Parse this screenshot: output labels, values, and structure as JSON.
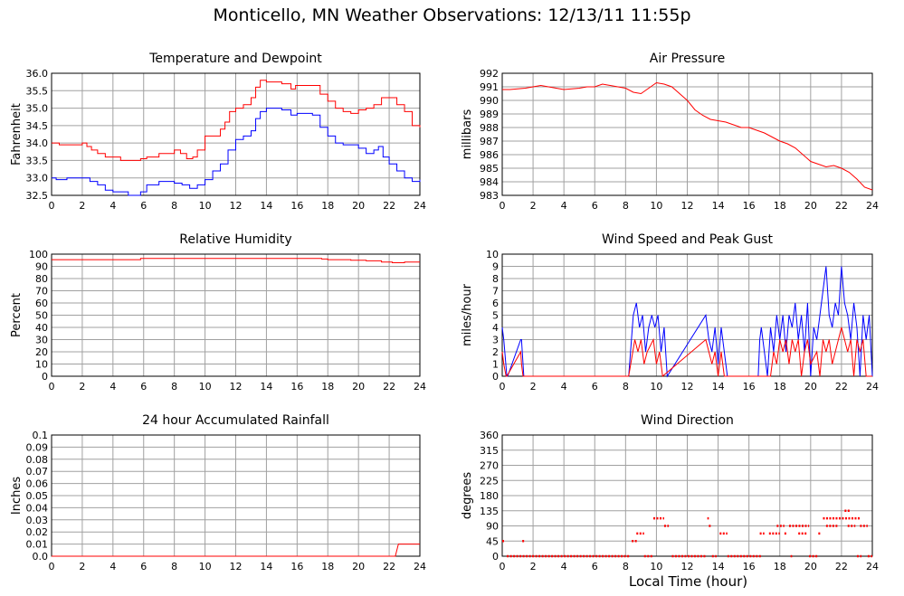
{
  "page_title": "Monticello, MN Weather Observations: 12/13/11 11:55p",
  "x_axis_title": "Local Time (hour)",
  "colors": {
    "red": "#ff0000",
    "blue": "#0000ff",
    "grid": "#a0a0a0",
    "frame": "#000000"
  },
  "chart_data": [
    {
      "id": "temp",
      "type": "line",
      "title": "Temperature and Dewpoint",
      "ylabel": "Fahrenheit",
      "xlabel": "",
      "xlim": [
        0,
        24
      ],
      "ylim": [
        32.5,
        36.0
      ],
      "xticks": [
        0,
        2,
        4,
        6,
        8,
        10,
        12,
        14,
        16,
        18,
        20,
        22,
        24
      ],
      "yticks": [
        32.5,
        33.0,
        33.5,
        34.0,
        34.5,
        35.0,
        35.5,
        36.0
      ],
      "ytick_labels": [
        "32.5",
        "33.0",
        "33.5",
        "34.0",
        "34.5",
        "35.0",
        "35.5",
        "36.0"
      ],
      "grid": true,
      "series": [
        {
          "color": "#ff0000",
          "step": true,
          "x": [
            0,
            0.5,
            2,
            2.3,
            2.6,
            3.0,
            3.5,
            4.5,
            5.8,
            6.2,
            6.5,
            7.0,
            8.0,
            8.4,
            8.8,
            9.2,
            9.5,
            10.0,
            11.0,
            11.3,
            11.6,
            12.0,
            12.5,
            13.0,
            13.3,
            13.6,
            14.0,
            15.0,
            15.6,
            15.9,
            17.5,
            18.0,
            18.5,
            19.0,
            19.5,
            20.0,
            20.5,
            21.0,
            21.5,
            22.0,
            22.5,
            23.0,
            23.5,
            24.0
          ],
          "y": [
            34.0,
            33.95,
            34.0,
            33.9,
            33.8,
            33.7,
            33.6,
            33.5,
            33.55,
            33.6,
            33.6,
            33.7,
            33.8,
            33.7,
            33.55,
            33.6,
            33.8,
            34.2,
            34.4,
            34.6,
            34.9,
            35.0,
            35.1,
            35.3,
            35.6,
            35.8,
            35.75,
            35.7,
            35.55,
            35.65,
            35.4,
            35.2,
            35.0,
            34.9,
            34.85,
            34.95,
            35.0,
            35.1,
            35.3,
            35.3,
            35.1,
            34.9,
            34.5,
            34.45
          ]
        },
        {
          "color": "#0000ff",
          "step": true,
          "x": [
            0,
            0.3,
            1.0,
            2.0,
            2.5,
            3.0,
            3.5,
            4.0,
            5.0,
            5.8,
            6.2,
            7.0,
            8.0,
            8.5,
            9.0,
            9.5,
            10.0,
            10.5,
            11.0,
            11.5,
            12.0,
            12.5,
            13.0,
            13.3,
            13.6,
            14.0,
            15.0,
            15.6,
            16.0,
            17.0,
            17.5,
            18.0,
            18.5,
            19.0,
            20.0,
            20.5,
            21.0,
            21.3,
            21.6,
            22.0,
            22.5,
            23.0,
            23.5,
            24.0
          ],
          "y": [
            33.0,
            32.95,
            33.0,
            33.0,
            32.9,
            32.8,
            32.65,
            32.6,
            32.5,
            32.6,
            32.8,
            32.9,
            32.85,
            32.8,
            32.7,
            32.8,
            32.95,
            33.2,
            33.4,
            33.8,
            34.1,
            34.2,
            34.35,
            34.7,
            34.9,
            35.0,
            34.95,
            34.8,
            34.85,
            34.8,
            34.45,
            34.2,
            34.0,
            33.95,
            33.85,
            33.7,
            33.8,
            33.9,
            33.6,
            33.4,
            33.2,
            33.0,
            32.9,
            32.95
          ]
        }
      ]
    },
    {
      "id": "pressure",
      "type": "line",
      "title": "Air Pressure",
      "ylabel": "millibars",
      "xlabel": "",
      "xlim": [
        0,
        24
      ],
      "ylim": [
        983,
        992
      ],
      "xticks": [
        0,
        2,
        4,
        6,
        8,
        10,
        12,
        14,
        16,
        18,
        20,
        22,
        24
      ],
      "yticks": [
        983,
        984,
        985,
        986,
        987,
        988,
        989,
        990,
        991,
        992
      ],
      "ytick_labels": [
        "983",
        "984",
        "985",
        "986",
        "987",
        "988",
        "989",
        "990",
        "991",
        "992"
      ],
      "grid": true,
      "series": [
        {
          "color": "#ff0000",
          "step": false,
          "x": [
            0,
            0.5,
            1,
            1.5,
            2,
            2.5,
            3,
            3.5,
            4,
            4.5,
            5,
            5.5,
            6,
            6.5,
            7,
            7.5,
            8,
            8.5,
            9,
            9.5,
            10,
            10.5,
            11,
            11.5,
            12,
            12.5,
            13,
            13.5,
            14,
            14.5,
            15,
            15.5,
            16,
            16.5,
            17,
            17.5,
            18,
            18.5,
            19,
            19.5,
            20,
            20.5,
            21,
            21.5,
            22,
            22.5,
            23,
            23.5,
            24
          ],
          "y": [
            990.8,
            990.8,
            990.85,
            990.9,
            991.0,
            991.1,
            991.0,
            990.9,
            990.8,
            990.85,
            990.9,
            991.0,
            991.0,
            991.2,
            991.1,
            991.0,
            990.9,
            990.6,
            990.5,
            990.9,
            991.3,
            991.2,
            991.0,
            990.5,
            990.0,
            989.3,
            988.9,
            988.6,
            988.5,
            988.4,
            988.2,
            988.0,
            988.0,
            987.8,
            987.6,
            987.3,
            987.0,
            986.8,
            986.5,
            986.0,
            985.5,
            985.3,
            985.1,
            985.2,
            985.0,
            984.7,
            984.2,
            983.6,
            983.4
          ]
        }
      ]
    },
    {
      "id": "humidity",
      "type": "line",
      "title": "Relative Humidity",
      "ylabel": "Percent",
      "xlabel": "",
      "xlim": [
        0,
        24
      ],
      "ylim": [
        0,
        100
      ],
      "xticks": [
        0,
        2,
        4,
        6,
        8,
        10,
        12,
        14,
        16,
        18,
        20,
        22,
        24
      ],
      "yticks": [
        0,
        10,
        20,
        30,
        40,
        50,
        60,
        70,
        80,
        90,
        100
      ],
      "ytick_labels": [
        "0",
        "10",
        "20",
        "30",
        "40",
        "50",
        "60",
        "70",
        "80",
        "90",
        "100"
      ],
      "grid": true,
      "series": [
        {
          "color": "#ff0000",
          "step": true,
          "x": [
            0,
            5.8,
            17.6,
            18.0,
            18.5,
            19.5,
            20.5,
            21.5,
            22.2,
            23.0,
            24.0
          ],
          "y": [
            95.5,
            96.5,
            96.0,
            95.5,
            95.5,
            95.0,
            94.5,
            93.5,
            93.0,
            93.5,
            93.5
          ]
        }
      ]
    },
    {
      "id": "wind",
      "type": "line",
      "title": "Wind Speed and Peak Gust",
      "ylabel": "miles/hour",
      "xlabel": "",
      "xlim": [
        0,
        24
      ],
      "ylim": [
        0,
        10
      ],
      "xticks": [
        0,
        2,
        4,
        6,
        8,
        10,
        12,
        14,
        16,
        18,
        20,
        22,
        24
      ],
      "yticks": [
        0,
        1,
        2,
        3,
        4,
        5,
        6,
        7,
        8,
        9,
        10
      ],
      "ytick_labels": [
        "0",
        "1",
        "2",
        "3",
        "4",
        "5",
        "6",
        "7",
        "8",
        "9",
        "10"
      ],
      "grid": true,
      "series": [
        {
          "color": "#0000ff",
          "step": false,
          "x": [
            0,
            0.1,
            0.3,
            0.35,
            1.2,
            1.25,
            1.4,
            1.45,
            8.2,
            8.5,
            8.7,
            8.9,
            9.1,
            9.3,
            9.5,
            9.7,
            9.9,
            10.1,
            10.3,
            10.5,
            10.7,
            13.2,
            13.4,
            13.6,
            13.8,
            14.0,
            14.2,
            14.4,
            14.6,
            16.6,
            16.7,
            16.8,
            17.2,
            17.4,
            17.6,
            17.8,
            18.0,
            18.2,
            18.4,
            18.6,
            18.8,
            19.0,
            19.2,
            19.4,
            19.6,
            19.8,
            20.0,
            20.2,
            20.4,
            20.6,
            20.8,
            21.0,
            21.2,
            21.4,
            21.6,
            21.8,
            22.0,
            22.2,
            22.4,
            22.6,
            22.8,
            23.0,
            23.2,
            23.4,
            23.6,
            23.8,
            24.0
          ],
          "y": [
            4,
            3,
            0,
            0,
            3,
            3,
            0,
            0,
            0,
            5,
            6,
            4,
            5,
            2,
            4,
            5,
            4,
            5,
            2,
            4,
            0,
            5,
            3,
            2,
            4,
            1,
            4,
            2,
            0,
            0,
            3,
            4,
            0,
            4,
            2,
            5,
            3,
            5,
            2,
            5,
            4,
            6,
            3,
            5,
            2,
            6,
            0,
            4,
            3,
            5,
            7,
            9,
            5,
            4,
            6,
            5,
            9,
            6,
            5,
            3,
            6,
            4,
            0,
            5,
            3,
            5,
            0
          ]
        },
        {
          "color": "#ff0000",
          "step": false,
          "x": [
            0,
            0.1,
            0.25,
            0.3,
            1.2,
            1.25,
            1.35,
            8.2,
            8.6,
            8.8,
            9.0,
            9.2,
            9.4,
            9.8,
            10.0,
            10.2,
            10.4,
            13.2,
            13.4,
            13.6,
            13.8,
            14.0,
            14.2,
            14.4,
            16.6,
            17.4,
            17.6,
            17.8,
            18.0,
            18.2,
            18.4,
            18.6,
            18.8,
            19.0,
            19.2,
            19.4,
            19.6,
            19.8,
            20.0,
            20.4,
            20.6,
            20.8,
            21.0,
            21.2,
            21.4,
            21.6,
            21.8,
            22.0,
            22.2,
            22.4,
            22.6,
            22.8,
            23.0,
            23.2,
            23.4,
            23.6,
            23.8,
            24.0
          ],
          "y": [
            2,
            1,
            0,
            0,
            2,
            1,
            0,
            0,
            3,
            2,
            3,
            1,
            2,
            3,
            1,
            2,
            0,
            3,
            2,
            1,
            2,
            0,
            2,
            0,
            0,
            0,
            2,
            1,
            3,
            2,
            3,
            1,
            3,
            2,
            3,
            0,
            2,
            3,
            1,
            2,
            0,
            3,
            2,
            3,
            1,
            2,
            3,
            4,
            3,
            2,
            3,
            0,
            3,
            2,
            3,
            0,
            0,
            0
          ]
        }
      ]
    },
    {
      "id": "rain",
      "type": "line",
      "title": "24 hour Accumulated Rainfall",
      "ylabel": "Inches",
      "xlabel": "",
      "xlim": [
        0,
        24
      ],
      "ylim": [
        0,
        0.1
      ],
      "xticks": [
        0,
        2,
        4,
        6,
        8,
        10,
        12,
        14,
        16,
        18,
        20,
        22,
        24
      ],
      "yticks": [
        0,
        0.01,
        0.02,
        0.03,
        0.04,
        0.05,
        0.06,
        0.07,
        0.08,
        0.09,
        0.1
      ],
      "ytick_labels": [
        "0.0",
        "0.01",
        "0.02",
        "0.03",
        "0.04",
        "0.05",
        "0.06",
        "0.07",
        "0.08",
        "0.09",
        "0.1"
      ],
      "grid": true,
      "series": [
        {
          "color": "#ff0000",
          "step": false,
          "x": [
            0,
            22.4,
            22.6,
            24
          ],
          "y": [
            0,
            0,
            0.01,
            0.01
          ]
        }
      ]
    },
    {
      "id": "winddir",
      "type": "scatter",
      "title": "Wind Direction",
      "ylabel": "degrees",
      "xlabel": "Local Time (hour)",
      "xlim": [
        0,
        24
      ],
      "ylim": [
        0,
        360
      ],
      "xticks": [
        0,
        2,
        4,
        6,
        8,
        10,
        12,
        14,
        16,
        18,
        20,
        22,
        24
      ],
      "yticks": [
        0,
        45,
        90,
        135,
        180,
        225,
        270,
        315,
        360
      ],
      "ytick_labels": [
        "0",
        "45",
        "90",
        "135",
        "180",
        "225",
        "270",
        "315",
        "360"
      ],
      "grid": true,
      "series": [
        {
          "color": "#ff0000",
          "segments": [
            {
              "x0": 0.0,
              "x1": 0.2,
              "y": 45
            },
            {
              "x0": 0.3,
              "x1": 8.3,
              "y": 0
            },
            {
              "x0": 1.3,
              "x1": 1.5,
              "y": 45
            },
            {
              "x0": 8.4,
              "x1": 8.8,
              "y": 45
            },
            {
              "x0": 8.7,
              "x1": 9.2,
              "y": 67.5
            },
            {
              "x0": 9.2,
              "x1": 9.8,
              "y": 0
            },
            {
              "x0": 9.8,
              "x1": 10.5,
              "y": 112.5
            },
            {
              "x0": 10.5,
              "x1": 10.8,
              "y": 90
            },
            {
              "x0": 11.0,
              "x1": 13.2,
              "y": 0
            },
            {
              "x0": 13.3,
              "x1": 13.4,
              "y": 112.5
            },
            {
              "x0": 13.4,
              "x1": 13.6,
              "y": 90
            },
            {
              "x0": 13.6,
              "x1": 13.9,
              "y": 0
            },
            {
              "x0": 14.1,
              "x1": 14.6,
              "y": 67.5
            },
            {
              "x0": 14.6,
              "x1": 16.8,
              "y": 0
            },
            {
              "x0": 16.7,
              "x1": 17.0,
              "y": 67.5
            },
            {
              "x0": 17.3,
              "x1": 18.0,
              "y": 67.5
            },
            {
              "x0": 17.8,
              "x1": 18.3,
              "y": 90
            },
            {
              "x0": 18.3,
              "x1": 18.5,
              "y": 67.5
            },
            {
              "x0": 18.6,
              "x1": 19.9,
              "y": 90
            },
            {
              "x0": 18.7,
              "x1": 18.8,
              "y": 0
            },
            {
              "x0": 19.2,
              "x1": 19.8,
              "y": 67.5
            },
            {
              "x0": 19.9,
              "x1": 20.5,
              "y": 0
            },
            {
              "x0": 20.5,
              "x1": 20.7,
              "y": 67.5
            },
            {
              "x0": 20.8,
              "x1": 23.2,
              "y": 112.5
            },
            {
              "x0": 21.0,
              "x1": 21.8,
              "y": 90
            },
            {
              "x0": 22.2,
              "x1": 22.6,
              "y": 135
            },
            {
              "x0": 22.4,
              "x1": 22.9,
              "y": 90
            },
            {
              "x0": 23.2,
              "x1": 23.7,
              "y": 90
            },
            {
              "x0": 23.0,
              "x1": 23.3,
              "y": 0
            },
            {
              "x0": 23.7,
              "x1": 24.0,
              "y": 0
            }
          ]
        }
      ]
    }
  ]
}
